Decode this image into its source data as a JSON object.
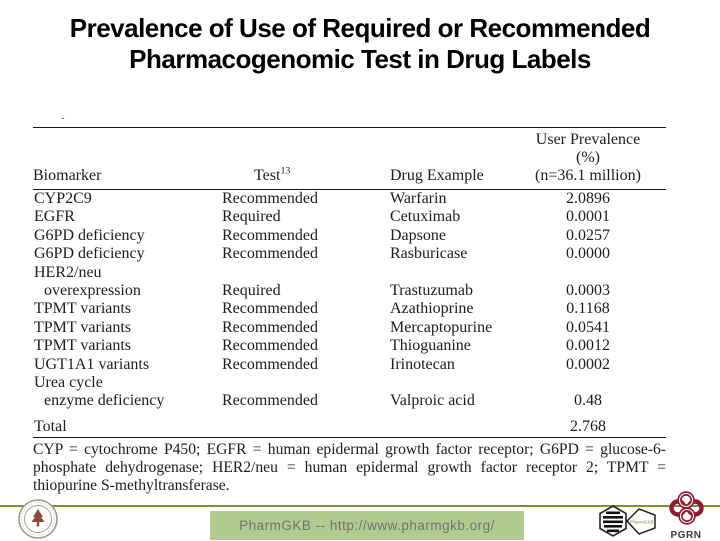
{
  "title": {
    "line1": "Prevalence of Use of Required or Recommended",
    "line2": "Pharmacogenomic Test in Drug Labels"
  },
  "table": {
    "stray_mark": "-",
    "headers": {
      "biomarker": "Biomarker",
      "test": "Test",
      "test_superscript": "13",
      "drug": "Drug Example",
      "prevalence_line1": "User Prevalence",
      "prevalence_line2": "(%)",
      "prevalence_line3": "(n=36.1 million)"
    },
    "rows": [
      {
        "biomarker": "CYP2C9",
        "indent": false,
        "test": "Recommended",
        "drug": "Warfarin",
        "prevalence": "2.0896"
      },
      {
        "biomarker": "EGFR",
        "indent": false,
        "test": "Required",
        "drug": "Cetuximab",
        "prevalence": "0.0001"
      },
      {
        "biomarker": "G6PD deficiency",
        "indent": false,
        "test": "Recommended",
        "drug": "Dapsone",
        "prevalence": "0.0257"
      },
      {
        "biomarker": "G6PD deficiency",
        "indent": false,
        "test": "Recommended",
        "drug": "Rasburicase",
        "prevalence": "0.0000"
      },
      {
        "biomarker": "HER2/neu",
        "indent": false,
        "test": "",
        "drug": "",
        "prevalence": ""
      },
      {
        "biomarker": "overexpression",
        "indent": true,
        "test": "Required",
        "drug": "Trastuzumab",
        "prevalence": "0.0003"
      },
      {
        "biomarker": "TPMT variants",
        "indent": false,
        "test": "Recommended",
        "drug": "Azathioprine",
        "prevalence": "0.1168"
      },
      {
        "biomarker": "TPMT variants",
        "indent": false,
        "test": "Recommended",
        "drug": "Mercaptopurine",
        "prevalence": "0.0541"
      },
      {
        "biomarker": "TPMT variants",
        "indent": false,
        "test": "Recommended",
        "drug": "Thioguanine",
        "prevalence": "0.0012"
      },
      {
        "biomarker": "UGT1A1 variants",
        "indent": false,
        "test": "Recommended",
        "drug": "Irinotecan",
        "prevalence": "0.0002"
      },
      {
        "biomarker": "Urea cycle",
        "indent": false,
        "test": "",
        "drug": "",
        "prevalence": ""
      },
      {
        "biomarker": "enzyme deficiency",
        "indent": true,
        "test": "Recommended",
        "drug": "Valproic acid",
        "prevalence": "0.48"
      }
    ],
    "total": {
      "label": "Total",
      "value": "2.768"
    },
    "footnote": "CYP = cytochrome P450; EGFR = human epidermal growth factor receptor; G6PD = glucose-6-phosphate dehydrogenase; HER2/neu = human epidermal growth factor receptor 2; TPMT = thiopurine S-methyltransferase."
  },
  "footer": {
    "banner_text": "PharmGKB -- http://www.pharmgkb.org/",
    "pharmgkb_logo_text": "PharmGKB",
    "pgrn_label": "PGRN"
  },
  "colors": {
    "olive_line": "#7e8f3a",
    "banner_bg": "#b2cb90",
    "banner_text": "#6f6f6f",
    "pgrn_maroon": "#8e1b33",
    "seal_ring": "#98a086",
    "seal_tree": "#8a4a3a",
    "logo_text_olive": "#7a8a35"
  }
}
